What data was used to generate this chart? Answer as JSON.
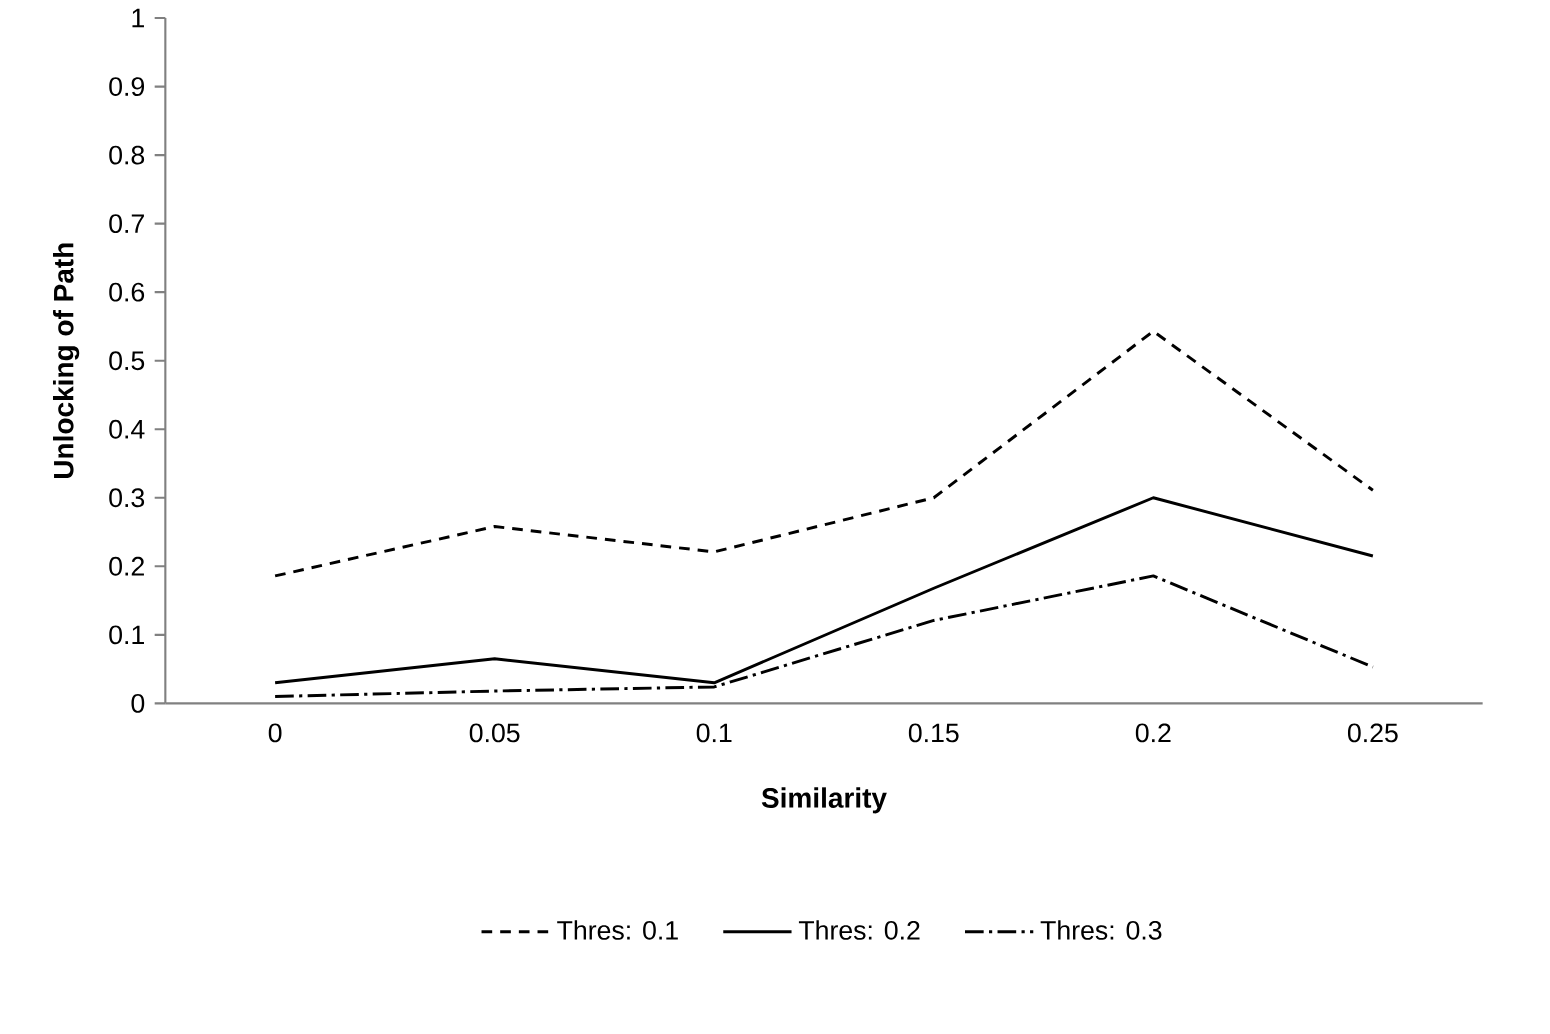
{
  "chart_data": {
    "type": "line",
    "xlabel": "Similarity",
    "ylabel": "Unlocking of Path",
    "categories": [
      "0",
      "0.05",
      "0.1",
      "0.15",
      "0.2",
      "0.25"
    ],
    "ylim": [
      0,
      1
    ],
    "yticks": [
      0,
      0.1,
      0.2,
      0.3,
      0.4,
      0.5,
      0.6,
      0.7,
      0.8,
      0.9,
      1
    ],
    "legend": "bottom",
    "marker": "none",
    "series": [
      {
        "name": "Thres: 0.1",
        "color": "#000000",
        "line_style": "dashed",
        "values": [
          0.186,
          0.258,
          0.221,
          0.3,
          0.543,
          0.311
        ]
      },
      {
        "name": "Thres: 0.2",
        "color": "#000000",
        "line_style": "solid",
        "values": [
          0.03,
          0.065,
          0.03,
          0.168,
          0.3,
          0.215
        ]
      },
      {
        "name": "Thres: 0.3",
        "color": "#000000",
        "line_style": "dashdotted",
        "values": [
          0.01,
          0.018,
          0.024,
          0.121,
          0.186,
          0.053
        ]
      }
    ]
  }
}
